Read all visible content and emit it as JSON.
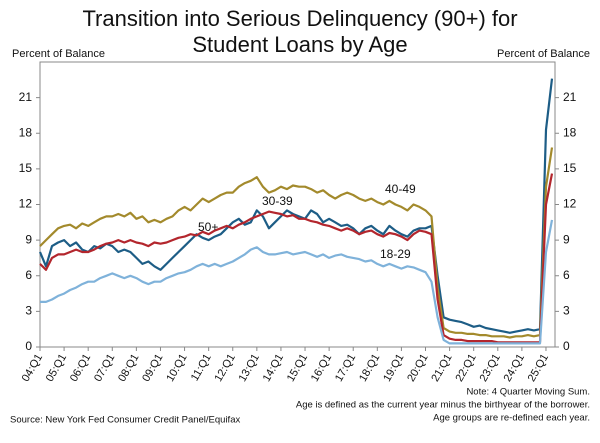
{
  "chart_data": {
    "type": "line",
    "title_lines": [
      "Transition into Serious Delinquency (90+) for",
      "Student Loans by Age"
    ],
    "ylabel": "Percent of Balance",
    "y2label": "Percent of Balance",
    "categories": [
      "04:Q1",
      null,
      null,
      null,
      "05:Q1",
      null,
      null,
      null,
      "06:Q1",
      null,
      null,
      null,
      "07:Q1",
      null,
      null,
      null,
      "08:Q1",
      null,
      null,
      null,
      "09:Q1",
      null,
      null,
      null,
      "10:Q1",
      null,
      null,
      null,
      "11:Q1",
      null,
      null,
      null,
      "12:Q1",
      null,
      null,
      null,
      "13:Q1",
      null,
      null,
      null,
      "14:Q1",
      null,
      null,
      null,
      "15:Q1",
      null,
      null,
      null,
      "16:Q1",
      null,
      null,
      null,
      "17:Q1",
      null,
      null,
      null,
      "18:Q1",
      null,
      null,
      null,
      "19:Q1",
      null,
      null,
      null,
      "20:Q1",
      null,
      null,
      null,
      "21:Q1",
      null,
      null,
      null,
      "22:Q1",
      null,
      null,
      null,
      "23:Q1",
      null,
      null,
      null,
      "24:Q1",
      null,
      null,
      null,
      "25:Q1",
      null
    ],
    "series": [
      {
        "name": "50+",
        "color": "#1d5d86",
        "values": [
          8,
          6.8,
          8.5,
          8.8,
          9,
          8.5,
          8.8,
          8.2,
          8,
          8.5,
          8.3,
          8.7,
          8.5,
          8,
          8.2,
          8,
          7.5,
          7,
          7.2,
          6.8,
          6.5,
          7,
          7.5,
          8,
          8.5,
          9,
          9.5,
          9.2,
          9,
          9.3,
          9.5,
          10,
          10.5,
          10.8,
          10.3,
          10.5,
          11.5,
          11,
          10,
          10.5,
          11,
          11.5,
          11.2,
          11,
          10.8,
          11.5,
          11.2,
          10.5,
          10.8,
          10.5,
          10.2,
          10.3,
          10,
          9.5,
          10,
          10.2,
          9.8,
          9.5,
          10.2,
          9.8,
          9.5,
          9.3,
          9.8,
          10,
          10,
          10.2,
          6,
          2.5,
          2.3,
          2.2,
          2.1,
          1.9,
          1.7,
          1.8,
          1.6,
          1.5,
          1.4,
          1.3,
          1.2,
          1.3,
          1.4,
          1.5,
          1.4,
          1.5,
          18.3,
          22.6
        ]
      },
      {
        "name": "40-49",
        "color": "#a38a2c",
        "values": [
          8.5,
          9,
          9.5,
          10,
          10.2,
          10.3,
          10,
          10.4,
          10.2,
          10.5,
          10.8,
          11,
          11,
          11.2,
          11,
          11.3,
          10.8,
          11,
          10.5,
          10.7,
          10.5,
          10.8,
          11,
          11.5,
          11.8,
          11.5,
          12,
          12.5,
          12.2,
          12.5,
          12.8,
          13,
          13,
          13.5,
          13.8,
          14,
          14.3,
          13.5,
          13,
          13.2,
          13.5,
          13.3,
          13.6,
          13.5,
          13.5,
          13.3,
          13,
          13.2,
          12.8,
          12.5,
          12.8,
          13,
          12.8,
          12.5,
          12.3,
          12.5,
          12.2,
          12,
          12.3,
          12,
          11.8,
          11.5,
          12,
          11.8,
          11.5,
          11,
          5,
          1.6,
          1.3,
          1.2,
          1.2,
          1.1,
          1.1,
          1,
          1,
          0.9,
          0.9,
          0.9,
          0.8,
          0.9,
          0.9,
          1,
          0.9,
          1,
          13.5,
          16.8
        ]
      },
      {
        "name": "30-39",
        "color": "#b3262d",
        "values": [
          7,
          6.5,
          7.5,
          7.8,
          7.8,
          8,
          8.2,
          8,
          8,
          8.2,
          8.5,
          8.7,
          8.8,
          9,
          8.8,
          9,
          8.8,
          8.7,
          8.5,
          8.8,
          8.7,
          8.8,
          9,
          9.2,
          9.3,
          9.5,
          9.4,
          9.7,
          9.5,
          9.8,
          10,
          10.2,
          10,
          10.3,
          10.5,
          10.8,
          11,
          11.2,
          11.4,
          11.3,
          11.2,
          11,
          11.1,
          10.8,
          10.8,
          10.6,
          10.5,
          10.3,
          10.2,
          10,
          9.8,
          10,
          9.8,
          9.5,
          9.7,
          9.8,
          9.5,
          9.3,
          9.6,
          9.5,
          9.3,
          9,
          9.5,
          9.8,
          9.7,
          9.5,
          4,
          1,
          0.7,
          0.6,
          0.6,
          0.5,
          0.5,
          0.5,
          0.5,
          0.5,
          0.4,
          0.4,
          0.4,
          0.4,
          0.4,
          0.4,
          0.4,
          0.4,
          12,
          14.6
        ]
      },
      {
        "name": "18-29",
        "color": "#7fb2da",
        "values": [
          3.8,
          3.8,
          4,
          4.3,
          4.5,
          4.8,
          5,
          5.3,
          5.5,
          5.5,
          5.8,
          6,
          6.2,
          6,
          5.8,
          6,
          5.8,
          5.5,
          5.3,
          5.5,
          5.5,
          5.8,
          6,
          6.2,
          6.3,
          6.5,
          6.8,
          7,
          6.8,
          7,
          6.8,
          7,
          7.2,
          7.5,
          7.8,
          8.2,
          8.4,
          8,
          7.8,
          7.8,
          7.9,
          8,
          7.8,
          7.9,
          8,
          7.8,
          7.6,
          7.8,
          7.5,
          7.7,
          7.8,
          7.6,
          7.5,
          7.4,
          7.2,
          7.3,
          7,
          6.8,
          7,
          6.8,
          6.6,
          6.8,
          6.7,
          6.5,
          6.3,
          5.5,
          2.5,
          0.6,
          0.3,
          0.3,
          0.3,
          0.3,
          0.3,
          0.3,
          0.3,
          0.3,
          0.3,
          0.3,
          0.3,
          0.3,
          0.3,
          0.3,
          0.3,
          0.3,
          8,
          10.7
        ]
      }
    ],
    "ylim": [
      0,
      24
    ],
    "yticks": [
      0,
      3,
      6,
      9,
      12,
      15,
      18,
      21
    ],
    "y2lim": [
      0,
      24
    ],
    "y2ticks": [
      0,
      3,
      6,
      9,
      12,
      15,
      18,
      21
    ],
    "notes": [
      "Note: 4 Quarter Moving Sum.",
      "Age is defined as the current year minus the birthyear of the borrower.",
      "Age groups are re-defined each year."
    ],
    "source": "Source: New York Fed Consumer Credit Panel/Equifax"
  }
}
